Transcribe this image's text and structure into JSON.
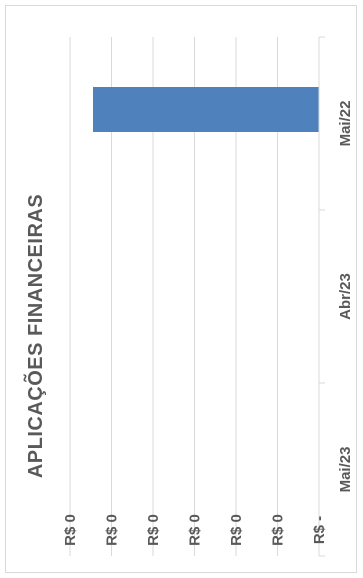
{
  "chart_data": {
    "type": "bar",
    "orientation": "horizontal",
    "rotated_view": true,
    "title": "APLICAÇÕES FINANCEIRAS",
    "categories": [
      "Mai/22",
      "Abr/23",
      "Mai/23"
    ],
    "series": [
      {
        "values": [
          6,
          0,
          0
        ]
      }
    ],
    "value_tick_labels": [
      "R$ -",
      "R$ 0",
      "R$ 0",
      "R$ 0",
      "R$ 0",
      "R$ 0",
      "R$ 0"
    ],
    "value_ticks": [
      0,
      1,
      2,
      3,
      4,
      5,
      6
    ],
    "xlim": [
      0,
      6
    ],
    "grid": true,
    "bar_color": "#4f81bd",
    "grid_color": "#d9d9d9",
    "text_color": "#595959"
  }
}
